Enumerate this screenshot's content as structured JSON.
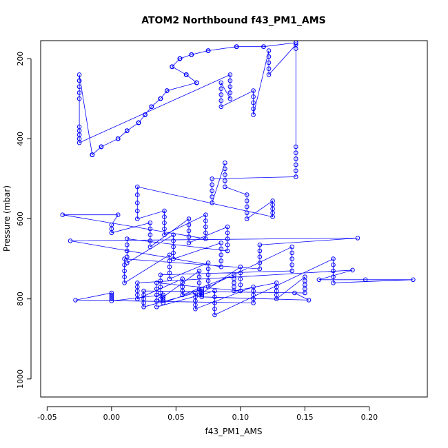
{
  "chart_data": {
    "type": "scatter",
    "title": "ATOM2 Northbound f43_PM1_AMS",
    "xlabel": "f43_PM1_AMS",
    "ylabel": "Pressure (mbar)",
    "xlim": [
      -0.055,
      0.245
    ],
    "ylim": [
      1045,
      155
    ],
    "y_reversed": true,
    "x_ticks": [
      -0.05,
      0.0,
      0.05,
      0.1,
      0.15,
      0.2
    ],
    "x_tick_labels": [
      "-0.05",
      "0.00",
      "0.05",
      "0.10",
      "0.15",
      "0.20"
    ],
    "y_ticks": [
      200,
      400,
      600,
      800,
      1000
    ],
    "y_tick_labels": [
      "200",
      "400",
      "600",
      "800",
      "1000"
    ],
    "marker": "open-circle",
    "connected": true,
    "grid": false,
    "color": "#0000ff",
    "series": [
      {
        "x": [
          0.143,
          0.143,
          0.143,
          0.143,
          0.143,
          0.118,
          0.118,
          0.118,
          0.097,
          0.097,
          0.097,
          0.097,
          0.097,
          0.097,
          0.075,
          0.075,
          0.075,
          0.075,
          0.062,
          0.062,
          0.062,
          0.062,
          0.062,
          0.053,
          0.053,
          0.053,
          0.053,
          0.053,
          0.053,
          0.053,
          0.047,
          0.047,
          0.047,
          0.047,
          0.047,
          0.047,
          0.058,
          0.058,
          0.058,
          0.058,
          0.058,
          0.058,
          0.058,
          0.066,
          0.066,
          0.066,
          0.066,
          0.066,
          0.043,
          0.043,
          0.043,
          0.043,
          0.038,
          0.038,
          0.038,
          0.038,
          0.038,
          0.031,
          0.031,
          0.031,
          0.031,
          0.031,
          0.026,
          0.026,
          0.026,
          0.026,
          0.026,
          0.021,
          0.021,
          0.021,
          0.021,
          0.021,
          0.012,
          0.012,
          0.012,
          0.012,
          0.012,
          0.005,
          0.005,
          0.005,
          0.005,
          0.005,
          -0.008,
          -0.008,
          -0.008,
          -0.008,
          -0.008,
          -0.015,
          -0.015,
          -0.015,
          -0.015,
          -0.015,
          -0.025,
          -0.025,
          -0.025,
          -0.025,
          -0.025,
          -0.025,
          -0.025,
          -0.025,
          -0.025,
          -0.025,
          0.092,
          0.092,
          0.092,
          0.092,
          0.092,
          0.085,
          0.085,
          0.085,
          0.085,
          0.085,
          0.11,
          0.11,
          0.11,
          0.11,
          0.11,
          0.122,
          0.122,
          0.122,
          0.122,
          0.122,
          0.143,
          0.143,
          0.143,
          0.143,
          0.143,
          0.143,
          0.143,
          0.143,
          0.078,
          0.078,
          0.078,
          0.078,
          0.078,
          0.088,
          0.088,
          0.088,
          0.088,
          0.088,
          0.105,
          0.105,
          0.105,
          0.105,
          0.105,
          0.125,
          0.125,
          0.125,
          0.125,
          0.125,
          0.02,
          0.02,
          0.02,
          0.02,
          0.02,
          0.041,
          0.041,
          0.041,
          0.041,
          0.041,
          0.073,
          0.073,
          0.073,
          0.073,
          0.073,
          -0.038,
          0.005,
          0.0,
          0.0,
          0.0,
          0.03,
          0.03,
          0.03,
          0.03,
          0.03,
          0.06,
          0.06,
          0.06,
          0.06,
          0.06,
          0.09,
          0.09,
          0.09,
          0.09,
          0.09,
          0.012,
          0.012,
          0.012,
          0.012,
          0.012,
          0.048,
          0.048,
          0.048,
          0.048,
          0.048,
          0.085,
          0.085,
          0.085,
          0.085,
          0.085,
          -0.032,
          0.191,
          0.115,
          0.115,
          0.115,
          0.115,
          0.115,
          0.01,
          0.01,
          0.01,
          0.01,
          0.01,
          0.045,
          0.045,
          0.045,
          0.045,
          0.045,
          0.075,
          0.075,
          0.075,
          0.075,
          0.075,
          0.14,
          0.14,
          0.14,
          0.14,
          0.14,
          0.038,
          0.038,
          0.038,
          0.038,
          0.038,
          0.068,
          0.068,
          0.068,
          0.068,
          0.068,
          0.1,
          0.1,
          0.1,
          0.1,
          0.1,
          0.035,
          0.035,
          0.035,
          0.035,
          0.035,
          0.08,
          0.08,
          0.08,
          0.08,
          0.08,
          0.172,
          0.172,
          0.172,
          0.172,
          0.172,
          0.234,
          0.197,
          0.161,
          0.187,
          0.02,
          0.02,
          0.02,
          0.02,
          0.02,
          0.055,
          0.055,
          0.055,
          0.055,
          0.055,
          0.095,
          0.095,
          0.095,
          0.095,
          0.095,
          0.128,
          0.128,
          0.128,
          0.128,
          0.128,
          0.15,
          0.15,
          0.15,
          0.15,
          0.15,
          0.025,
          0.025,
          0.025,
          0.025,
          0.025,
          0.065,
          0.065,
          0.065,
          0.065,
          0.065,
          0.11,
          0.11,
          0.11,
          0.11,
          0.11,
          -0.028,
          0.0,
          0.0,
          0.0,
          0.0,
          0.0,
          0.04,
          0.04,
          0.04,
          0.04,
          0.04,
          0.07,
          0.07,
          0.07,
          0.07,
          0.07,
          0.153,
          0.142
        ],
        "y": [
          160,
          160,
          160,
          160,
          160,
          170,
          170,
          170,
          170,
          170,
          170,
          170,
          170,
          170,
          180,
          180,
          180,
          180,
          190,
          190,
          190,
          190,
          190,
          200,
          200,
          200,
          200,
          200,
          200,
          200,
          220,
          220,
          220,
          220,
          220,
          220,
          240,
          240,
          240,
          240,
          240,
          240,
          240,
          260,
          260,
          260,
          260,
          260,
          280,
          280,
          280,
          280,
          300,
          300,
          300,
          300,
          300,
          320,
          320,
          320,
          320,
          320,
          340,
          340,
          340,
          340,
          340,
          360,
          360,
          360,
          360,
          360,
          380,
          380,
          380,
          380,
          380,
          400,
          400,
          400,
          400,
          400,
          420,
          420,
          420,
          420,
          420,
          440,
          440,
          440,
          440,
          440,
          240,
          255,
          270,
          285,
          300,
          370,
          380,
          390,
          400,
          410,
          240,
          255,
          270,
          285,
          300,
          260,
          275,
          290,
          305,
          320,
          280,
          295,
          310,
          325,
          340,
          180,
          195,
          210,
          225,
          240,
          165,
          175,
          420,
          435,
          450,
          465,
          480,
          495,
          500,
          515,
          530,
          545,
          560,
          460,
          475,
          490,
          505,
          520,
          540,
          555,
          570,
          585,
          600,
          555,
          565,
          575,
          585,
          595,
          520,
          540,
          560,
          580,
          600,
          580,
          595,
          610,
          625,
          640,
          590,
          605,
          620,
          635,
          650,
          590,
          590,
          615,
          625,
          635,
          610,
          625,
          640,
          655,
          670,
          600,
          615,
          630,
          645,
          660,
          620,
          635,
          650,
          665,
          680,
          650,
          665,
          680,
          695,
          710,
          640,
          655,
          670,
          685,
          700,
          660,
          675,
          690,
          705,
          720,
          655,
          648,
          665,
          680,
          695,
          710,
          725,
          700,
          715,
          730,
          745,
          760,
          690,
          705,
          720,
          735,
          750,
          710,
          725,
          740,
          755,
          770,
          670,
          685,
          700,
          715,
          730,
          740,
          755,
          770,
          785,
          800,
          730,
          745,
          760,
          775,
          790,
          720,
          735,
          750,
          765,
          780,
          760,
          775,
          790,
          805,
          820,
          780,
          795,
          810,
          825,
          840,
          700,
          715,
          730,
          745,
          760,
          752,
          752,
          752,
          728,
          760,
          770,
          780,
          790,
          800,
          750,
          760,
          770,
          780,
          790,
          740,
          750,
          760,
          770,
          780,
          760,
          770,
          780,
          790,
          800,
          745,
          755,
          765,
          775,
          785,
          780,
          790,
          800,
          810,
          820,
          785,
          795,
          805,
          815,
          825,
          770,
          780,
          790,
          800,
          810,
          803,
          785,
          790,
          795,
          800,
          805,
          790,
          795,
          800,
          805,
          810,
          775,
          780,
          785,
          790,
          795,
          803,
          785
        ]
      }
    ]
  }
}
